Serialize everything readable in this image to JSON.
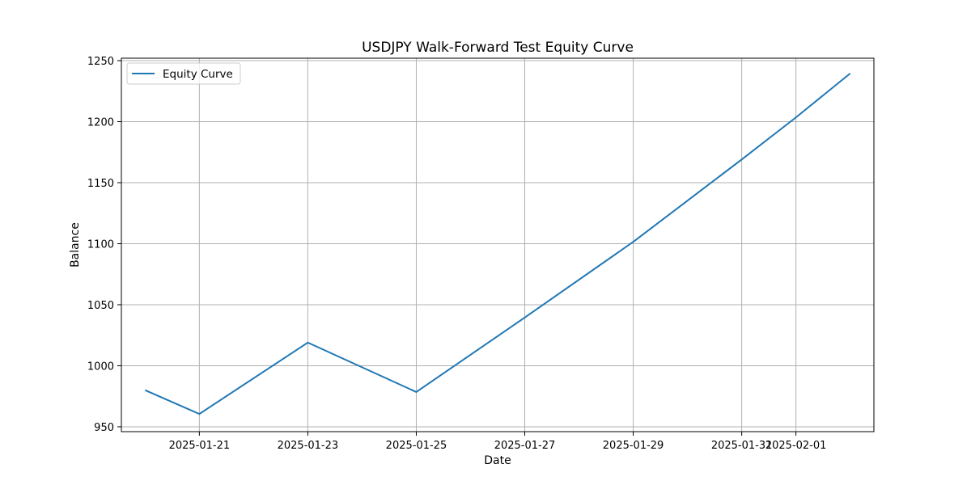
{
  "chart_data": {
    "type": "line",
    "title": "USDJPY Walk-Forward Test Equity Curve",
    "xlabel": "Date",
    "ylabel": "Balance",
    "x": [
      "2025-01-20",
      "2025-01-21",
      "2025-01-23",
      "2025-01-25",
      "2025-01-27",
      "2025-01-29",
      "2025-01-31",
      "2025-02-01",
      "2025-02-02"
    ],
    "series": [
      {
        "name": "Equity Curve",
        "color": "#1f77b4",
        "values": [
          980,
          960.5,
          1019,
          978.5,
          1039.5,
          1101.5,
          1169,
          1203.5,
          1239.5
        ]
      }
    ],
    "xlim": [
      "2025-01-19T13:30",
      "2025-02-02T10:30"
    ],
    "ylim": [
      946,
      1252
    ],
    "x_ticks": [
      "2025-01-21",
      "2025-01-23",
      "2025-01-25",
      "2025-01-27",
      "2025-01-29",
      "2025-01-31",
      "2025-02-01"
    ],
    "y_ticks": [
      950,
      1000,
      1050,
      1100,
      1150,
      1200,
      1250
    ],
    "grid": true,
    "legend_position": "upper left"
  }
}
